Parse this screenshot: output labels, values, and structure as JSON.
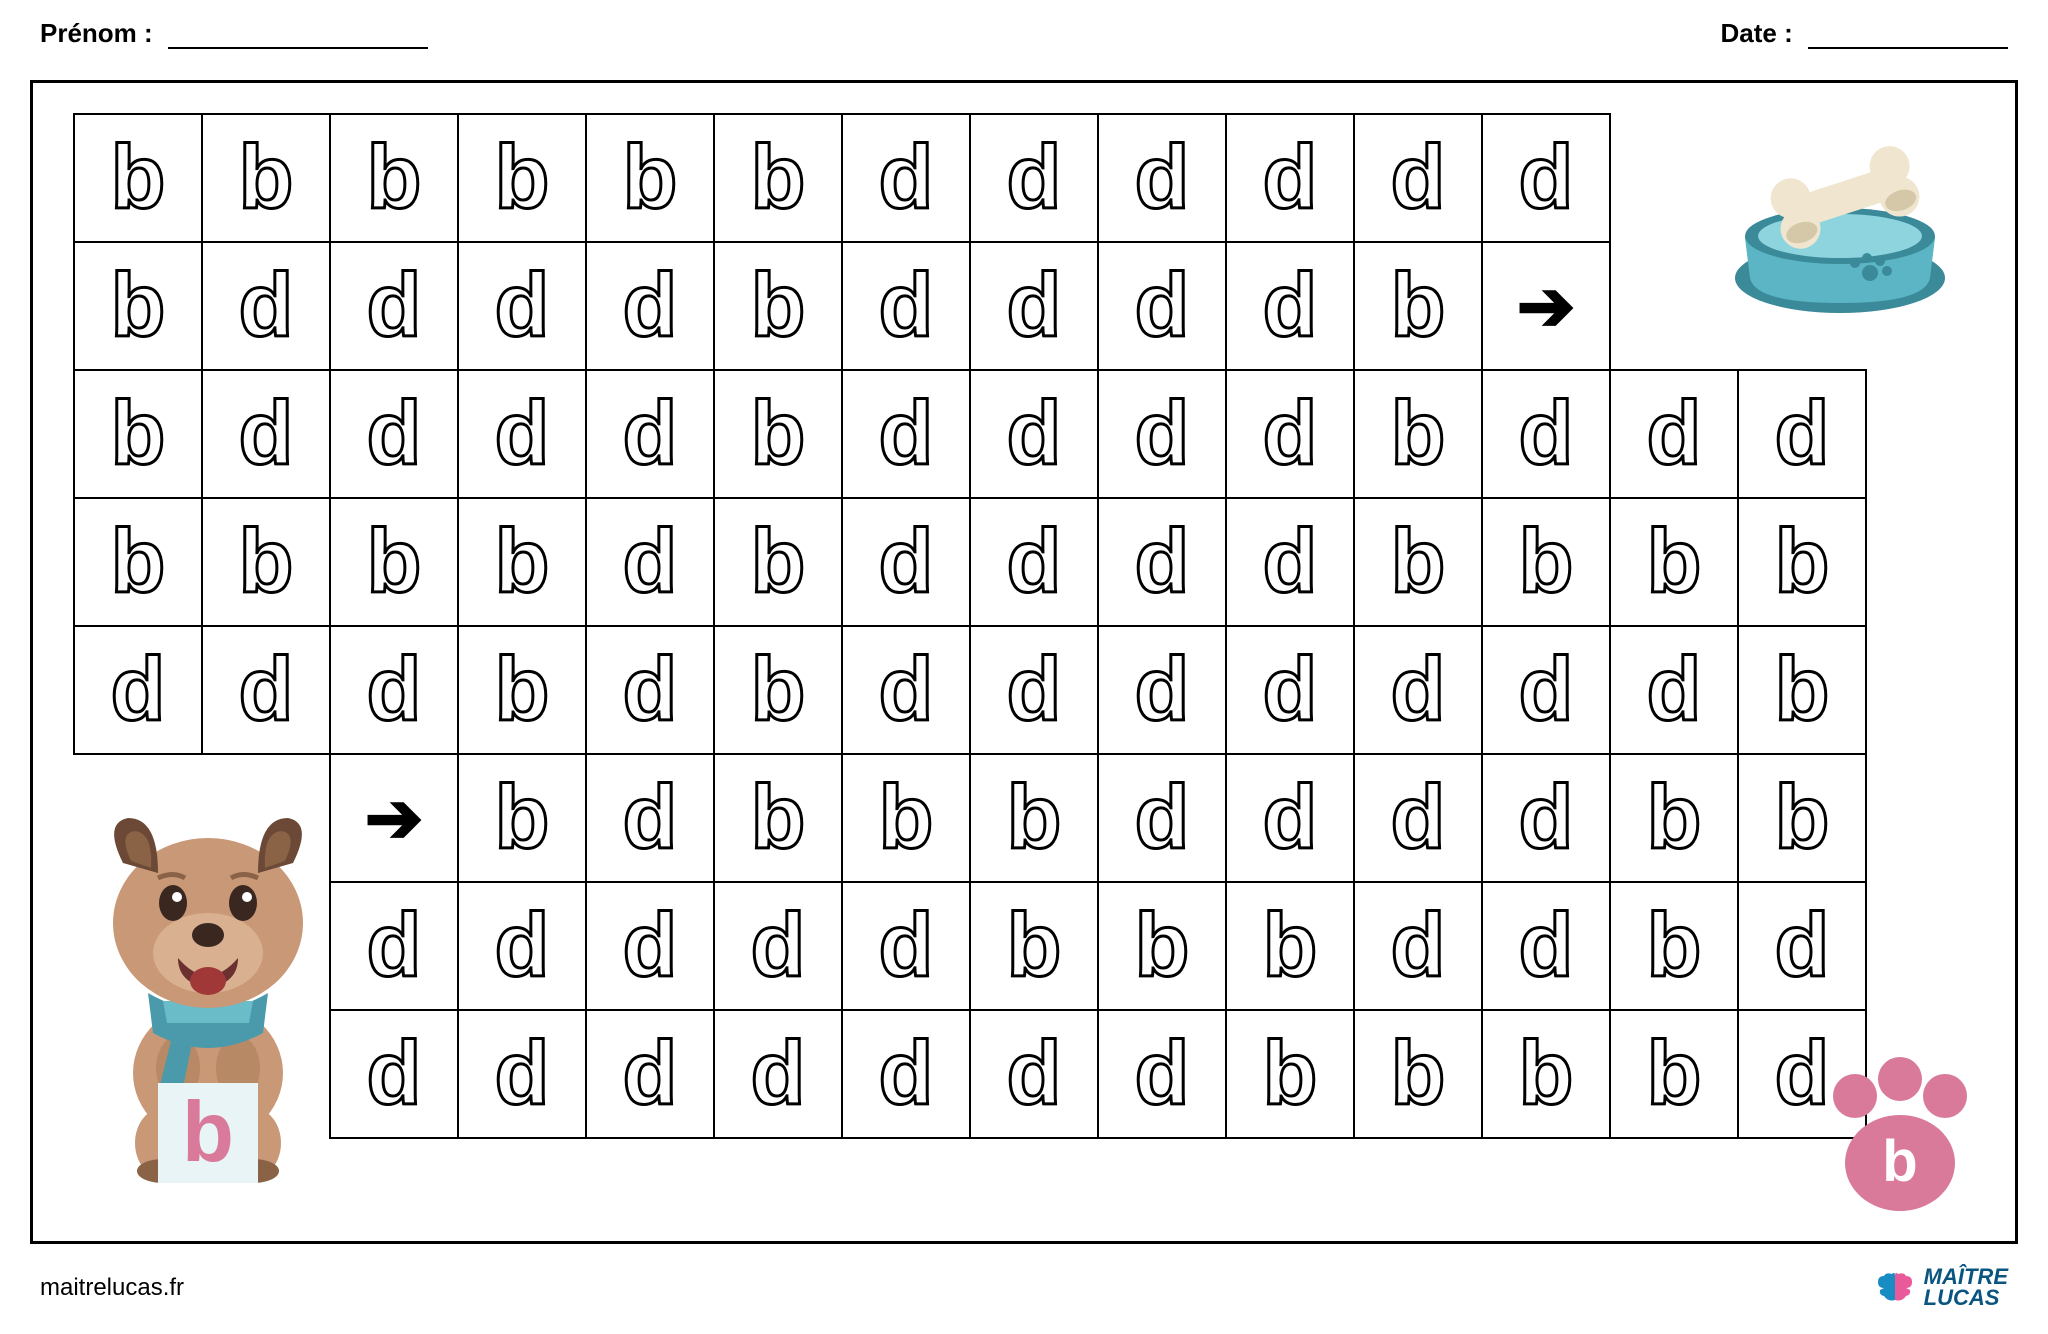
{
  "header": {
    "name_label": "Prénom :",
    "date_label": "Date :"
  },
  "colors": {
    "border": "#000000",
    "letter_outline": "#000000",
    "letter_fill": "#ffffff",
    "bowl_main": "#5bb5c4",
    "bowl_dark": "#3a8a99",
    "bowl_light": "#8dd4de",
    "bone": "#f0e6d0",
    "bone_shadow": "#d4c8a8",
    "dog_body": "#c99877",
    "dog_dark": "#8a6347",
    "dog_ear": "#6b4936",
    "dog_tongue": "#a03838",
    "dog_scarf": "#4a9aab",
    "dog_scarf2": "#6bbcc9",
    "b_block_bg": "#e8f4f5",
    "b_block_text": "#d97a9a",
    "paw": "#d97a9a",
    "paw_text": "#ffffff",
    "logo_blue": "#1a8cc4",
    "logo_pink": "#e85a9a",
    "logo_text": "#0a5580"
  },
  "grid": {
    "cols": 14,
    "rows": 8,
    "cell_size": 128,
    "data": [
      [
        "b",
        "b",
        "b",
        "b",
        "b",
        "b",
        "d",
        "d",
        "d",
        "d",
        "d",
        "d",
        "",
        ""
      ],
      [
        "b",
        "d",
        "d",
        "d",
        "d",
        "b",
        "d",
        "d",
        "d",
        "d",
        "b",
        "→",
        "",
        ""
      ],
      [
        "b",
        "d",
        "d",
        "d",
        "d",
        "b",
        "d",
        "d",
        "d",
        "d",
        "b",
        "d",
        "d",
        "d"
      ],
      [
        "b",
        "b",
        "b",
        "b",
        "d",
        "b",
        "d",
        "d",
        "d",
        "d",
        "b",
        "b",
        "b",
        "b"
      ],
      [
        "d",
        "d",
        "d",
        "b",
        "d",
        "b",
        "d",
        "d",
        "d",
        "d",
        "d",
        "d",
        "d",
        "b"
      ],
      [
        "",
        "",
        "→",
        "b",
        "d",
        "b",
        "b",
        "b",
        "d",
        "d",
        "d",
        "d",
        "b",
        "b"
      ],
      [
        "",
        "",
        "d",
        "d",
        "d",
        "d",
        "d",
        "b",
        "b",
        "b",
        "d",
        "d",
        "b",
        "d"
      ],
      [
        "",
        "",
        "d",
        "d",
        "d",
        "d",
        "d",
        "d",
        "d",
        "b",
        "b",
        "b",
        "b",
        "d"
      ]
    ]
  },
  "dog_letter": "b",
  "paw_letter": "b",
  "footer": {
    "site": "maitrelucas.fr",
    "logo_line1": "MAÎTRE",
    "logo_line2": "LUCAS"
  }
}
